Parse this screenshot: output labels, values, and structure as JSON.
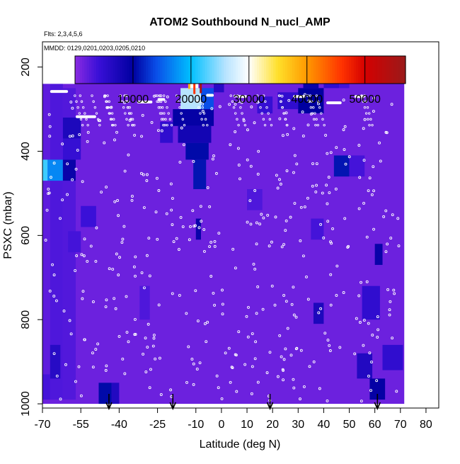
{
  "chart_data": {
    "type": "heatmap",
    "title": "ATOM2 Southbound N_nucl_AMP",
    "subtitle_flts": "Flts: 2,3,4,5,6",
    "subtitle_mmdd": "MMDD: 0129,0201,0203,0205,0210",
    "xlabel": "Latitude (deg N)",
    "ylabel": "PSXC (mbar)",
    "x_ticks": [
      -70,
      -55,
      -40,
      -25,
      -10,
      0,
      10,
      20,
      30,
      40,
      50,
      60,
      70,
      80
    ],
    "x_range": [
      -70,
      85
    ],
    "y_ticks": [
      200,
      400,
      600,
      800,
      1000
    ],
    "y_range": [
      1010,
      140
    ],
    "colorbar": {
      "range": [
        0,
        57000
      ],
      "ticks": [
        10000,
        20000,
        30000,
        40000,
        50000
      ],
      "stops": [
        {
          "v": 0,
          "color": "#8a2be2"
        },
        {
          "v": 4000,
          "color": "#3a10d8"
        },
        {
          "v": 10000,
          "color": "#0000a0"
        },
        {
          "v": 14000,
          "color": "#0a4ee8"
        },
        {
          "v": 20000,
          "color": "#00c0ff"
        },
        {
          "v": 26000,
          "color": "#b8e4ff"
        },
        {
          "v": 30000,
          "color": "#ffffff"
        },
        {
          "v": 35000,
          "color": "#ffe02a"
        },
        {
          "v": 40000,
          "color": "#ff9900"
        },
        {
          "v": 46000,
          "color": "#ff3300"
        },
        {
          "v": 50000,
          "color": "#d40000"
        },
        {
          "v": 57000,
          "color": "#9a1a1a"
        }
      ]
    },
    "background_value": 1500,
    "cells": [
      {
        "lat": [
          -70,
          -67
        ],
        "p": [
          240,
          990
        ],
        "v": 2200
      },
      {
        "lat": [
          -67,
          -62
        ],
        "p": [
          240,
          990
        ],
        "v": 3000
      },
      {
        "lat": [
          -62,
          -57
        ],
        "p": [
          250,
          990
        ],
        "v": 2800
      },
      {
        "lat": [
          -68,
          -62
        ],
        "p": [
          420,
          470
        ],
        "v": 17000
      },
      {
        "lat": [
          -70,
          -68
        ],
        "p": [
          420,
          470
        ],
        "v": 22000
      },
      {
        "lat": [
          -62,
          -57
        ],
        "p": [
          420,
          470
        ],
        "v": 9000
      },
      {
        "lat": [
          -62,
          -55
        ],
        "p": [
          320,
          370
        ],
        "v": 7000
      },
      {
        "lat": [
          -62,
          -55
        ],
        "p": [
          370,
          420
        ],
        "v": 4500
      },
      {
        "lat": [
          -67,
          -63
        ],
        "p": [
          860,
          940
        ],
        "v": 6000
      },
      {
        "lat": [
          -70,
          -67
        ],
        "p": [
          930,
          990
        ],
        "v": 3500
      },
      {
        "lat": [
          -60,
          -55
        ],
        "p": [
          590,
          640
        ],
        "v": 3500
      },
      {
        "lat": [
          -55,
          -49
        ],
        "p": [
          530,
          580
        ],
        "v": 4000
      },
      {
        "lat": [
          -48,
          -43
        ],
        "p": [
          950,
          1000
        ],
        "v": 10500
      },
      {
        "lat": [
          -43,
          -40
        ],
        "p": [
          950,
          1000
        ],
        "v": 6500
      },
      {
        "lat": [
          -45,
          -40
        ],
        "p": [
          200,
          220
        ],
        "v": 3500
      },
      {
        "lat": [
          -38,
          -30
        ],
        "p": [
          210,
          230
        ],
        "v": 6000
      },
      {
        "lat": [
          -30,
          -20
        ],
        "p": [
          210,
          230
        ],
        "v": 9000
      },
      {
        "lat": [
          -20,
          -16
        ],
        "p": [
          210,
          230
        ],
        "v": 11000
      },
      {
        "lat": [
          -16,
          -12
        ],
        "p": [
          210,
          230
        ],
        "v": 15000
      },
      {
        "lat": [
          -12,
          -8
        ],
        "p": [
          210,
          230
        ],
        "v": 25000
      },
      {
        "lat": [
          -8,
          -4
        ],
        "p": [
          210,
          230
        ],
        "v": 14000
      },
      {
        "lat": [
          -4,
          10
        ],
        "p": [
          210,
          230
        ],
        "v": 9000
      },
      {
        "lat": [
          10,
          26
        ],
        "p": [
          210,
          230
        ],
        "v": 6000
      },
      {
        "lat": [
          -13,
          -9
        ],
        "p": [
          230,
          250
        ],
        "v": 30000
      },
      {
        "lat": [
          -16,
          -8
        ],
        "p": [
          250,
          300
        ],
        "v": 26000
      },
      {
        "lat": [
          -8,
          -3
        ],
        "p": [
          250,
          300
        ],
        "v": 14000
      },
      {
        "lat": [
          -19,
          -3
        ],
        "p": [
          300,
          340
        ],
        "v": 9500
      },
      {
        "lat": [
          -17,
          -4
        ],
        "p": [
          340,
          380
        ],
        "v": 8000
      },
      {
        "lat": [
          -14,
          -5
        ],
        "p": [
          380,
          420
        ],
        "v": 10500
      },
      {
        "lat": [
          -11,
          -6
        ],
        "p": [
          420,
          490
        ],
        "v": 11000
      },
      {
        "lat": [
          -10,
          -8
        ],
        "p": [
          560,
          610
        ],
        "v": 9000
      },
      {
        "lat": [
          -24,
          -19
        ],
        "p": [
          330,
          380
        ],
        "v": 5000
      },
      {
        "lat": [
          -3,
          1
        ],
        "p": [
          230,
          260
        ],
        "v": 6000
      },
      {
        "lat": [
          14,
          20
        ],
        "p": [
          270,
          310
        ],
        "v": 4500
      },
      {
        "lat": [
          22,
          30
        ],
        "p": [
          260,
          300
        ],
        "v": 5000
      },
      {
        "lat": [
          30,
          40
        ],
        "p": [
          250,
          310
        ],
        "v": 10000
      },
      {
        "lat": [
          32,
          38
        ],
        "p": [
          210,
          250
        ],
        "v": 9000
      },
      {
        "lat": [
          40,
          46
        ],
        "p": [
          210,
          250
        ],
        "v": 5000
      },
      {
        "lat": [
          46,
          50
        ],
        "p": [
          210,
          250
        ],
        "v": 3500
      },
      {
        "lat": [
          44,
          50
        ],
        "p": [
          410,
          460
        ],
        "v": 11000
      },
      {
        "lat": [
          50,
          56
        ],
        "p": [
          410,
          460
        ],
        "v": 3500
      },
      {
        "lat": [
          36,
          40
        ],
        "p": [
          760,
          810
        ],
        "v": 7000
      },
      {
        "lat": [
          55,
          62
        ],
        "p": [
          720,
          800
        ],
        "v": 5000
      },
      {
        "lat": [
          53,
          59
        ],
        "p": [
          880,
          940
        ],
        "v": 6500
      },
      {
        "lat": [
          58,
          64
        ],
        "p": [
          940,
          990
        ],
        "v": 9500
      },
      {
        "lat": [
          60,
          63
        ],
        "p": [
          620,
          670
        ],
        "v": 9000
      },
      {
        "lat": [
          63,
          71
        ],
        "p": [
          860,
          920
        ],
        "v": 5000
      },
      {
        "lat": [
          35,
          40
        ],
        "p": [
          560,
          610
        ],
        "v": 3500
      },
      {
        "lat": [
          10,
          16
        ],
        "p": [
          490,
          540
        ],
        "v": 3000
      },
      {
        "lat": [
          -32,
          -28
        ],
        "p": [
          720,
          800
        ],
        "v": 3000
      }
    ],
    "white_bars": [
      {
        "lat": [
          -53,
          -45
        ],
        "p": 192
      },
      {
        "lat": [
          -67,
          -60
        ],
        "p": 258
      },
      {
        "lat": [
          -57,
          -49
        ],
        "p": 318
      },
      {
        "lat": [
          -33,
          -27
        ],
        "p": 283
      },
      {
        "lat": [
          -25,
          -22
        ],
        "p": 277
      },
      {
        "lat": [
          -6,
          -3
        ],
        "p": 267
      },
      {
        "lat": [
          6,
          10
        ],
        "p": 270
      },
      {
        "lat": [
          28,
          33
        ],
        "p": 270
      },
      {
        "lat": [
          41,
          47
        ],
        "p": 285
      },
      {
        "lat": [
          52,
          56
        ],
        "p": 270
      },
      {
        "lat": [
          65,
          71
        ],
        "p": 192
      }
    ],
    "arrows": [
      -44,
      -19,
      19,
      61
    ]
  }
}
